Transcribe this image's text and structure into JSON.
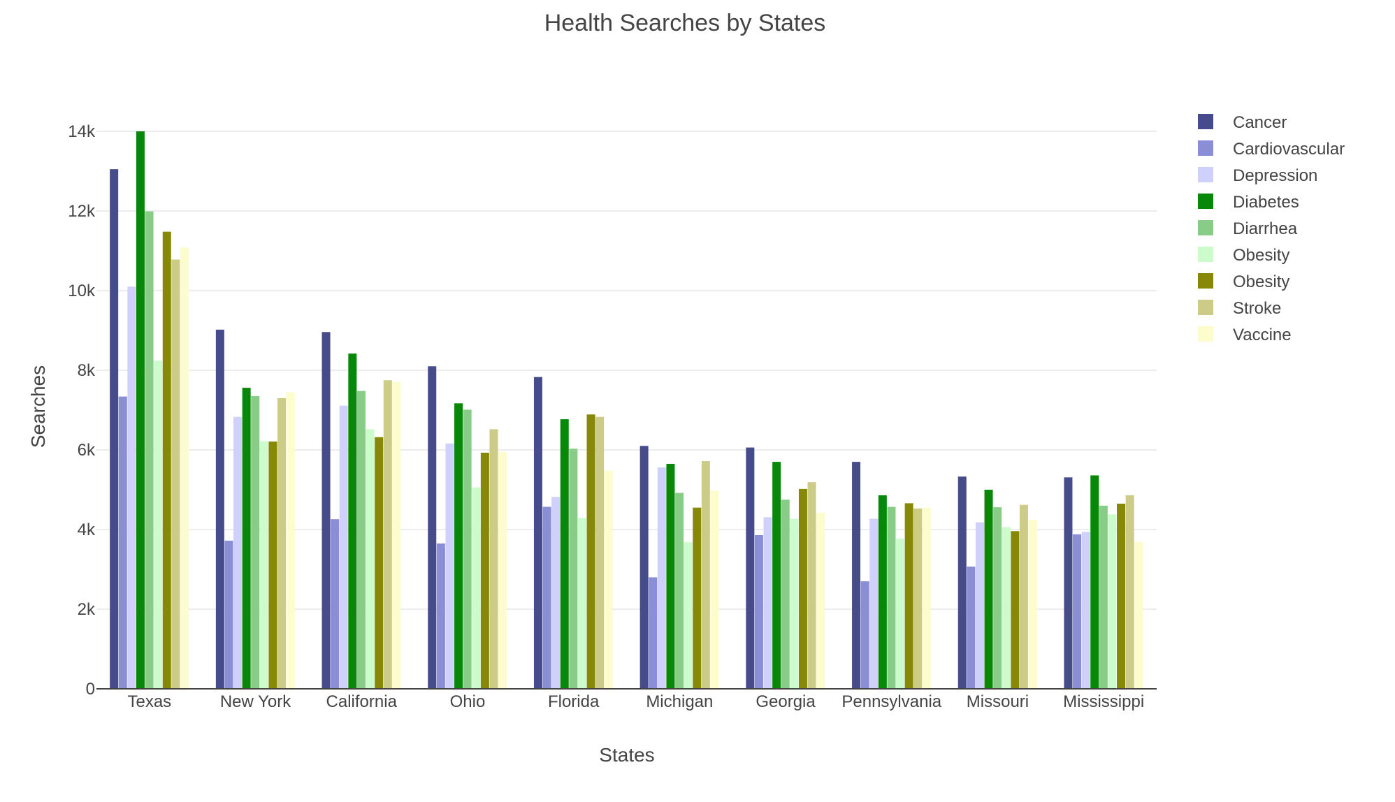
{
  "chart_data": {
    "type": "bar",
    "title": "Health Searches by States",
    "xlabel": "States",
    "ylabel": "Searches",
    "ylim": [
      0,
      14000
    ],
    "y_ticks": [
      0,
      2000,
      4000,
      6000,
      8000,
      10000,
      12000,
      14000
    ],
    "y_tick_labels": [
      "0",
      "2k",
      "4k",
      "6k",
      "8k",
      "10k",
      "12k",
      "14k"
    ],
    "grid": true,
    "legend_position": "top-right",
    "categories": [
      "Texas",
      "New York",
      "California",
      "Ohio",
      "Florida",
      "Michigan",
      "Georgia",
      "Pennsylvania",
      "Missouri",
      "Mississippi"
    ],
    "series": [
      {
        "name": "Cancer",
        "color": "#464b8c",
        "values": [
          13050,
          9020,
          8960,
          8100,
          7830,
          6100,
          6060,
          5700,
          5330,
          5310
        ]
      },
      {
        "name": "Cardiovascular",
        "color": "#8a8ed4",
        "values": [
          7340,
          3720,
          4260,
          3650,
          4570,
          2800,
          3860,
          2700,
          3070,
          3880
        ]
      },
      {
        "name": "Depression",
        "color": "#cfd0fb",
        "values": [
          10100,
          6830,
          7110,
          6160,
          4820,
          5560,
          4310,
          4270,
          4180,
          3940
        ]
      },
      {
        "name": "Diabetes",
        "color": "#088808",
        "values": [
          14000,
          7560,
          8420,
          7170,
          6770,
          5650,
          5700,
          4860,
          5000,
          5360
        ]
      },
      {
        "name": "Diarrhea",
        "color": "#88cc88",
        "values": [
          11990,
          7350,
          7480,
          7010,
          6030,
          4920,
          4750,
          4570,
          4560,
          4600
        ]
      },
      {
        "name": "Obesity",
        "color": "#ccfccc",
        "values": [
          8240,
          6220,
          6520,
          5060,
          4290,
          3680,
          4270,
          3770,
          4060,
          4380
        ]
      },
      {
        "name": "Obesity",
        "color": "#878708",
        "values": [
          11480,
          6210,
          6320,
          5930,
          6890,
          4550,
          5020,
          4660,
          3960,
          4650
        ]
      },
      {
        "name": "Stroke",
        "color": "#cccc88",
        "values": [
          10780,
          7300,
          7750,
          6520,
          6830,
          5720,
          5190,
          4530,
          4620,
          4860
        ]
      },
      {
        "name": "Vaccine",
        "color": "#fcfccc",
        "values": [
          11080,
          7450,
          7700,
          5950,
          5480,
          4980,
          4420,
          4550,
          4250,
          3690
        ]
      }
    ]
  }
}
